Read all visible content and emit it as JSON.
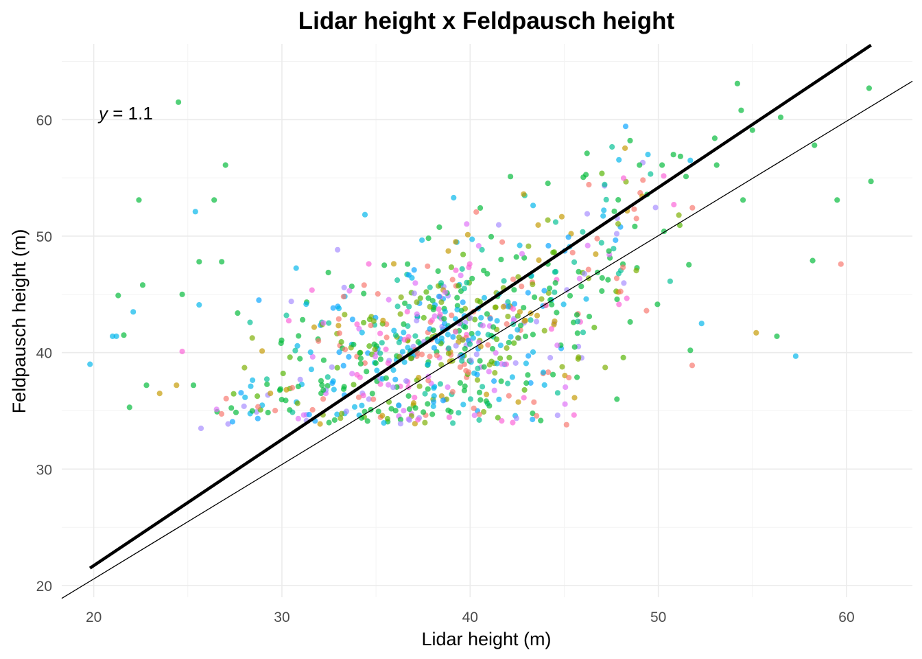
{
  "chart_data": {
    "type": "scatter",
    "title": "Lidar height x Feldpausch height",
    "xlabel": "Lidar height (m)",
    "ylabel": "Feldpausch height (m)",
    "xlim": [
      18.3,
      63.5
    ],
    "ylim": [
      19,
      66.5
    ],
    "x_ticks": [
      20,
      30,
      40,
      50,
      60
    ],
    "y_ticks": [
      20,
      30,
      40,
      50,
      60
    ],
    "x_tick_labels": [
      "20",
      "30",
      "40",
      "50",
      "60"
    ],
    "y_tick_labels": [
      "20",
      "30",
      "40",
      "50",
      "60"
    ],
    "grid": true,
    "legend": "none",
    "annotation": {
      "prefix": "y",
      "text": " = 1.1"
    },
    "lines": [
      {
        "name": "fitted",
        "x": [
          19.8,
          61.3
        ],
        "y": [
          21.5,
          66.4
        ],
        "style": "thick"
      },
      {
        "name": "one-to-one",
        "x": [
          18.3,
          63.5
        ],
        "y": [
          18.9,
          63.3
        ],
        "style": "thin"
      }
    ],
    "colors": [
      "#F8766D",
      "#C49A00",
      "#7CAE00",
      "#53B400",
      "#00BA38",
      "#00C094",
      "#00B6EB",
      "#06A4FF",
      "#A58AFF",
      "#DF70F8",
      "#FB61D7"
    ],
    "n_points": 800,
    "seed": 20240517,
    "series": [
      {
        "name": "outliers",
        "points": [
          [
            19.8,
            39.0,
            6
          ],
          [
            21.0,
            41.4,
            6
          ],
          [
            21.2,
            41.4,
            6
          ],
          [
            21.3,
            44.9,
            4
          ],
          [
            21.6,
            41.5,
            4
          ],
          [
            21.9,
            35.3,
            4
          ],
          [
            22.1,
            43.5,
            6
          ],
          [
            22.4,
            53.1,
            4
          ],
          [
            22.6,
            45.8,
            4
          ],
          [
            22.8,
            37.2,
            4
          ],
          [
            23.5,
            36.5,
            1
          ],
          [
            24.4,
            37.2,
            1
          ],
          [
            24.5,
            61.5,
            4
          ],
          [
            24.7,
            45.0,
            4
          ],
          [
            24.7,
            40.1,
            10
          ],
          [
            25.3,
            37.2,
            4
          ],
          [
            25.4,
            52.1,
            6
          ],
          [
            25.6,
            44.1,
            6
          ],
          [
            25.6,
            47.8,
            4
          ],
          [
            25.7,
            33.5,
            8
          ],
          [
            26.4,
            53.1,
            4
          ],
          [
            27.0,
            56.1,
            4
          ],
          [
            26.8,
            47.8,
            4
          ],
          [
            47.8,
            36.0,
            4
          ],
          [
            48.5,
            58.2,
            4
          ],
          [
            49.0,
            56.1,
            4
          ],
          [
            50.2,
            56.1,
            4
          ],
          [
            50.8,
            57.0,
            4
          ],
          [
            51.7,
            56.5,
            6
          ],
          [
            51.7,
            40.2,
            4
          ],
          [
            51.8,
            38.9,
            0
          ],
          [
            52.3,
            42.5,
            6
          ],
          [
            53.0,
            58.4,
            4
          ],
          [
            53.1,
            56.1,
            4
          ],
          [
            54.2,
            63.1,
            4
          ],
          [
            54.4,
            60.8,
            4
          ],
          [
            54.5,
            53.1,
            4
          ],
          [
            55.0,
            59.1,
            4
          ],
          [
            55.2,
            41.7,
            1
          ],
          [
            56.3,
            41.4,
            4
          ],
          [
            56.5,
            60.2,
            4
          ],
          [
            57.3,
            39.7,
            6
          ],
          [
            58.2,
            47.9,
            4
          ],
          [
            58.3,
            57.8,
            4
          ],
          [
            59.5,
            53.1,
            4
          ],
          [
            59.7,
            47.6,
            0
          ],
          [
            61.2,
            62.7,
            4
          ],
          [
            61.3,
            54.7,
            4
          ]
        ]
      }
    ]
  }
}
